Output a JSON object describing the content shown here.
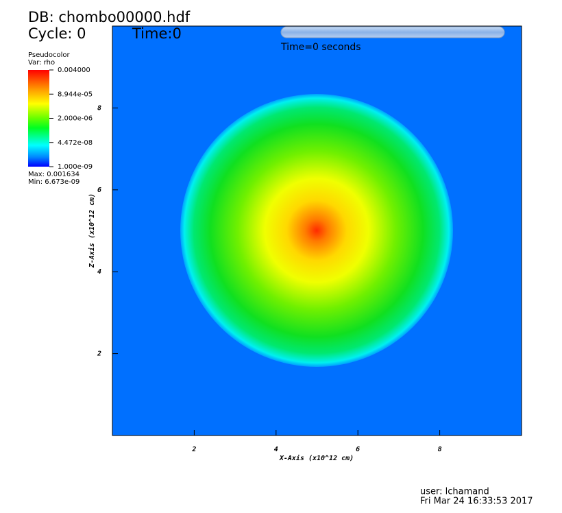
{
  "header": {
    "db": "DB: chombo00000.hdf",
    "cycle": "Cycle: 0",
    "time": "Time:0",
    "time_label": "Time=0 seconds"
  },
  "legend": {
    "plot": "Pseudocolor",
    "var": "Var: rho",
    "max": "Max: 0.001634",
    "min": "Min: 6.673e-09",
    "log": true,
    "range": [
      1e-09,
      0.004
    ],
    "ticks": [
      {
        "value": 0.004,
        "label": "0.004000"
      },
      {
        "value": 8.944e-05,
        "label": "8.944e-05"
      },
      {
        "value": 2e-06,
        "label": "2.000e-06"
      },
      {
        "value": 4.472e-08,
        "label": "4.472e-08"
      },
      {
        "value": 1e-09,
        "label": "1.000e-09"
      }
    ]
  },
  "chart_data": {
    "type": "pseudocolor",
    "x_label": "X-Axis (x10^12 cm)",
    "y_label": "Z-Axis (x10^12 cm)",
    "xlim": [
      0,
      10
    ],
    "ylim": [
      0,
      10
    ],
    "xticks": [
      2,
      4,
      6,
      8
    ],
    "yticks": [
      2,
      4,
      6,
      8
    ]
  },
  "footer": {
    "user": "user: lchamand",
    "date": "Fri Mar 24 16:33:53 2017"
  }
}
